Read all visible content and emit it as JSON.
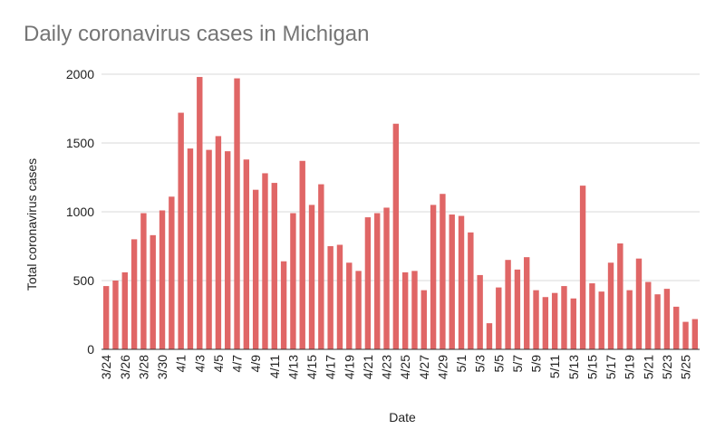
{
  "chart_data": {
    "type": "bar",
    "title": "Daily coronavirus cases in Michigan",
    "xlabel": "Date",
    "ylabel": "Total coronavirus cases",
    "ylim": [
      0,
      2000
    ],
    "yticks": [
      0,
      500,
      1000,
      1500,
      2000
    ],
    "grid": true,
    "bar_color": "#e06666",
    "categories": [
      "3/24",
      "3/25",
      "3/26",
      "3/27",
      "3/28",
      "3/29",
      "3/30",
      "3/31",
      "4/1",
      "4/2",
      "4/3",
      "4/4",
      "4/5",
      "4/6",
      "4/7",
      "4/8",
      "4/9",
      "4/10",
      "4/11",
      "4/12",
      "4/13",
      "4/14",
      "4/15",
      "4/16",
      "4/17",
      "4/18",
      "4/19",
      "4/20",
      "4/21",
      "4/22",
      "4/23",
      "4/24",
      "4/25",
      "4/26",
      "4/27",
      "4/28",
      "4/29",
      "4/30",
      "5/1",
      "5/2",
      "5/3",
      "5/4",
      "5/5",
      "5/6",
      "5/7",
      "5/8",
      "5/9",
      "5/10",
      "5/11",
      "5/12",
      "5/13",
      "5/14",
      "5/15",
      "5/16",
      "5/17",
      "5/18",
      "5/19",
      "5/20",
      "5/21",
      "5/22",
      "5/23",
      "5/24",
      "5/25",
      "5/26"
    ],
    "values": [
      460,
      500,
      560,
      800,
      990,
      830,
      1010,
      1110,
      1720,
      1460,
      1980,
      1450,
      1550,
      1440,
      1970,
      1380,
      1160,
      1280,
      1210,
      640,
      990,
      1370,
      1050,
      1200,
      750,
      760,
      630,
      570,
      960,
      990,
      1030,
      1640,
      560,
      570,
      430,
      1050,
      1130,
      980,
      970,
      850,
      540,
      190,
      450,
      650,
      580,
      670,
      430,
      380,
      410,
      460,
      370,
      1190,
      480,
      420,
      630,
      770,
      430,
      660,
      490,
      400,
      440,
      310,
      200,
      220
    ],
    "xtick_labels": [
      "3/24",
      "3/26",
      "3/28",
      "3/30",
      "4/1",
      "4/3",
      "4/5",
      "4/7",
      "4/9",
      "4/11",
      "4/13",
      "4/15",
      "4/17",
      "4/19",
      "4/21",
      "4/23",
      "4/25",
      "4/27",
      "4/29",
      "5/1",
      "5/3",
      "5/5",
      "5/7",
      "5/9",
      "5/11",
      "5/13",
      "5/15",
      "5/17",
      "5/19",
      "5/21",
      "5/23",
      "5/25"
    ]
  }
}
